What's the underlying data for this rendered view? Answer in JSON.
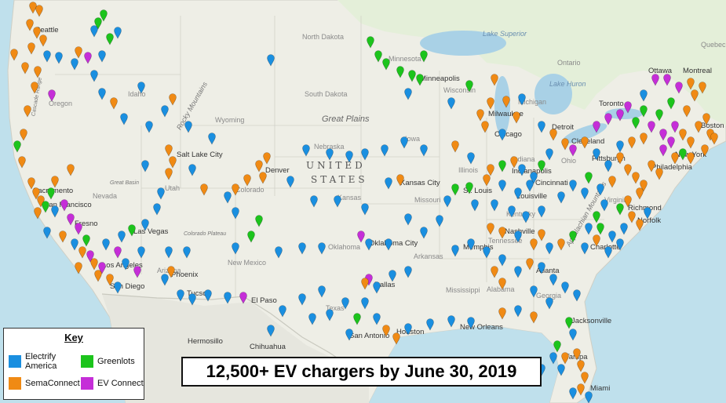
{
  "map": {
    "country_label": "UNITED STATES",
    "labels": {
      "north_dakota": "North Dakota",
      "south_dakota": "South Dakota",
      "nebraska": "Nebraska",
      "kansas": "Kansas",
      "iowa": "Iowa",
      "missouri": "Missouri",
      "oklahoma": "Oklahoma",
      "texas": "Texas",
      "wyoming": "Wyoming",
      "idaho": "Idaho",
      "oregon": "Oregon",
      "colorado": "Colorado",
      "utah": "Utah",
      "nevada": "Nevada",
      "arizona": "Arizona",
      "new_mexico": "New Mexico",
      "minnesota": "Minnesota",
      "wisconsin": "Wisconsin",
      "illinois": "Illinois",
      "indiana": "Indiana",
      "kentucky": "Kentucky",
      "tennessee": "Tennessee",
      "arkansas": "Arkansas",
      "mississippi": "Mississippi",
      "alabama": "Alabama",
      "georgia": "Georgia",
      "virginia": "Virginia",
      "ohio": "Ohio",
      "michigan": "Michigan",
      "quebec": "Quebec",
      "ontario": "Ontario"
    },
    "cities": {
      "seattle": "Seattle",
      "sacramento": "Sacramento",
      "san_francisco": "San Francisco",
      "fresno": "Fresno",
      "los_angeles": "Los Angeles",
      "san_diego": "San Diego",
      "las_vegas": "Las Vegas",
      "phoenix": "Phoenix",
      "tucson": "Tucson",
      "salt_lake_city": "Salt Lake City",
      "denver": "Denver",
      "el_paso": "El Paso",
      "hermosillo": "Hermosillo",
      "chihuahua": "Chihuahua",
      "oklahoma_city": "Oklahoma City",
      "dallas": "Dallas",
      "san_antonio": "San Antonio",
      "houston": "Houston",
      "new_orleans": "New Orleans",
      "kansas_city": "Kansas City",
      "st_louis": "St. Louis",
      "memphis": "Memphis",
      "nashville": "Nashville",
      "louisville": "Louisville",
      "indianapolis": "Indianapolis",
      "cincinnati": "Cincinnati",
      "chicago": "Chicago",
      "milwaukee": "Milwaukee",
      "minneapolis": "Minneapolis",
      "detroit": "Detroit",
      "cleveland": "Cleveland",
      "pittsburgh": "Pittsburgh",
      "philadelphia": "Philadelphia",
      "new_york": "New York",
      "boston": "Boston",
      "richmond": "Richmond",
      "norfolk": "Norfolk",
      "charlotte": "Charlotte",
      "atlanta": "Atlanta",
      "jacksonville": "Jacksonville",
      "tampa": "Tampa",
      "miami": "Miami",
      "toronto": "Toronto",
      "ottawa": "Ottawa",
      "montreal": "Montreal"
    },
    "water": {
      "lake_superior": "Lake Superior",
      "lake_huron": "Lake Huron",
      "great_plains": "Great Plains"
    },
    "mountains": {
      "rocky": "Rocky Mountains",
      "appalachian": "Appalachian Mountains",
      "cascade": "Cascade Range",
      "great_basin": "Great Basin",
      "colorado_plateau": "Colorado Plateau"
    }
  },
  "key": {
    "title": "Key",
    "items": [
      {
        "label": "Electrify America",
        "color": "#1a8fe0"
      },
      {
        "label": "Greenlots",
        "color": "#1cc41c"
      },
      {
        "label": "SemaConnect",
        "color": "#f08a14"
      },
      {
        "label": "EV Connect",
        "color": "#c52ed8"
      }
    ]
  },
  "banner": "12,500+ EV chargers by June 30, 2019",
  "colors": {
    "ocean": "#bfe0ec",
    "land": "#eeeee6",
    "mexico": "#e6e6de",
    "canada": "#e4efd9",
    "lakes": "#a9d1e6"
  }
}
